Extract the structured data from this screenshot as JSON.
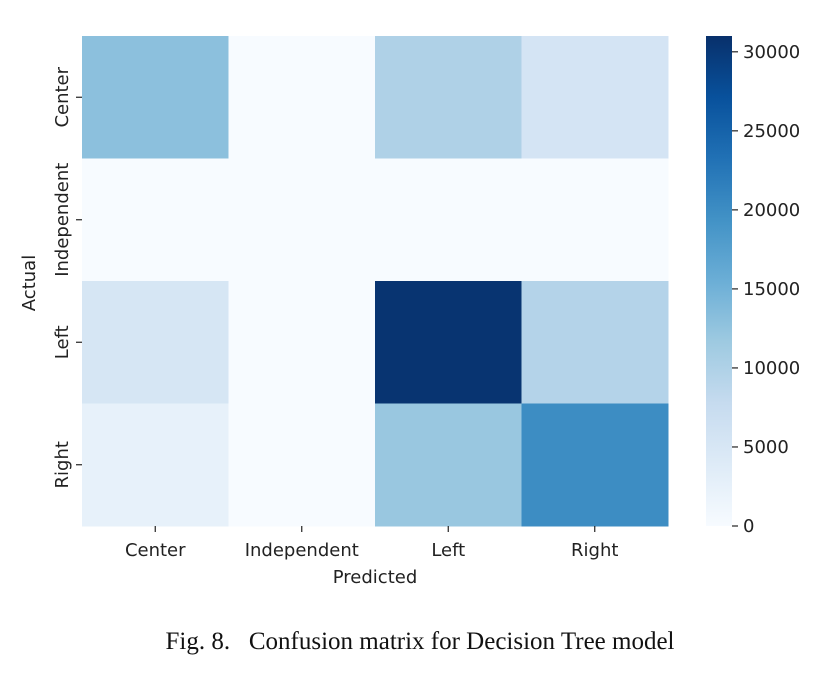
{
  "chart_data": {
    "type": "heatmap",
    "xlabel": "Predicted",
    "ylabel": "Actual",
    "x_categories": [
      "Center",
      "Independent",
      "Left",
      "Right"
    ],
    "y_categories": [
      "Center",
      "Independent",
      "Left",
      "Right"
    ],
    "values": [
      [
        13000,
        0,
        10000,
        5500
      ],
      [
        0,
        0,
        0,
        0
      ],
      [
        5200,
        0,
        30500,
        9500
      ],
      [
        2500,
        0,
        12000,
        20000
      ]
    ],
    "colorbar": {
      "min": 0,
      "max": 31000,
      "ticks": [
        0,
        5000,
        10000,
        15000,
        20000,
        25000,
        30000
      ],
      "colormap": "Blues",
      "low_color": "#f7fbff",
      "high_color": "#08306b"
    }
  },
  "caption": "Fig. 8.   Confusion matrix for Decision Tree model"
}
